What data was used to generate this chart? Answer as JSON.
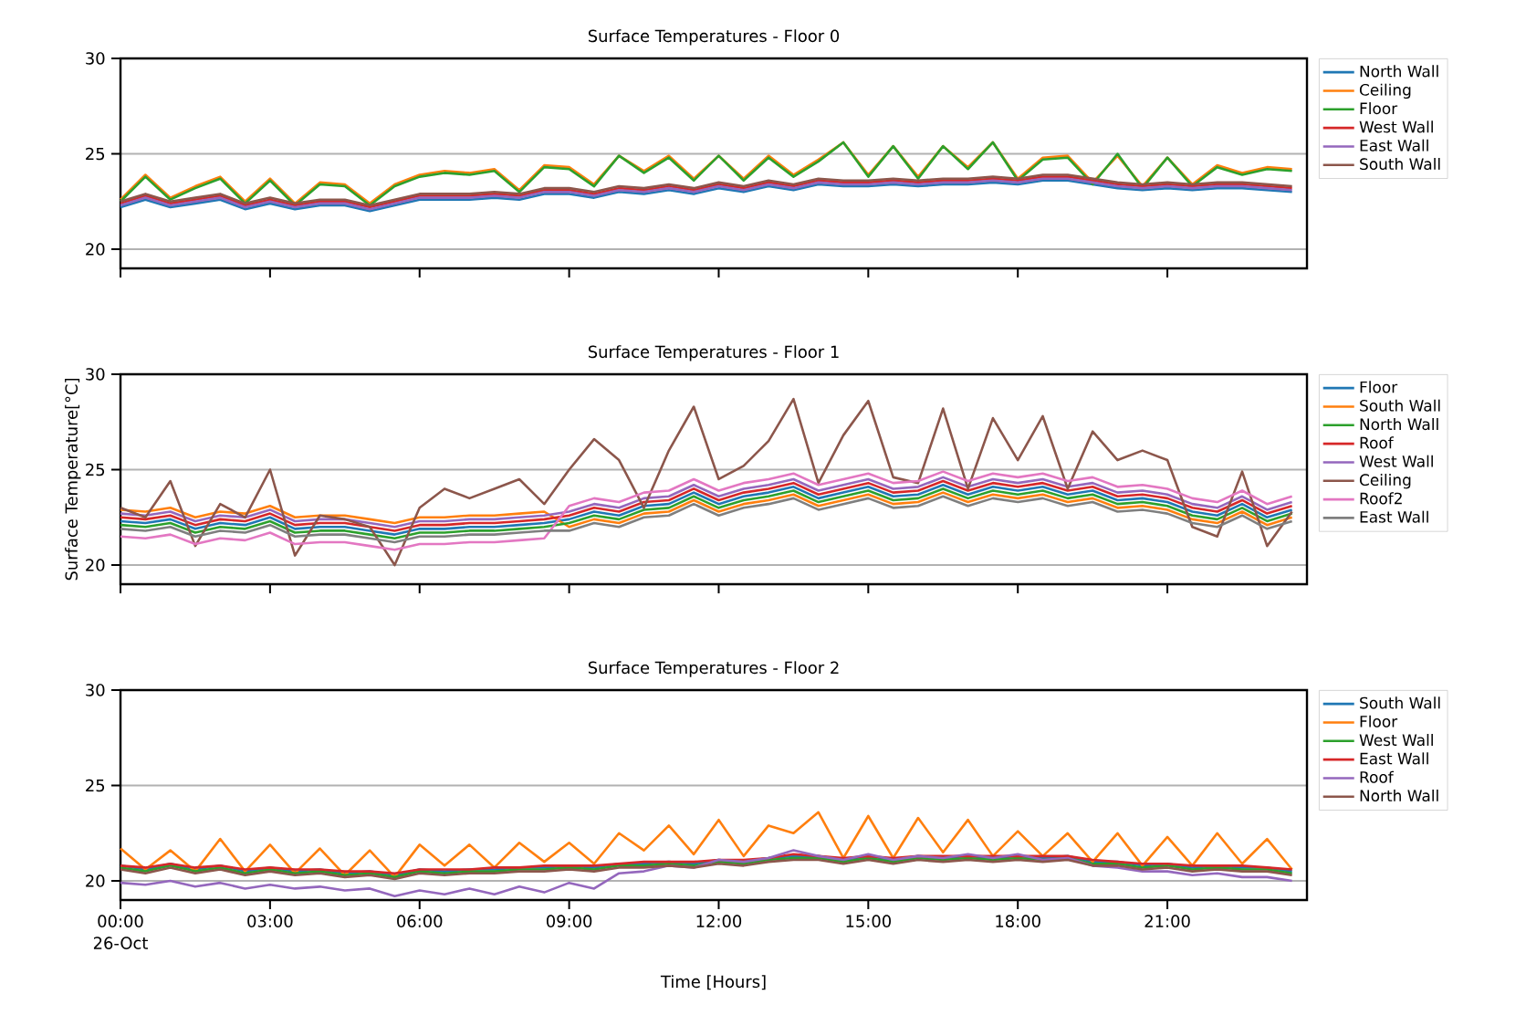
{
  "chart_data": [
    {
      "type": "line",
      "title": "Surface Temperatures - Floor 0",
      "x": [
        0,
        0.5,
        1,
        1.5,
        2,
        2.5,
        3,
        3.5,
        4,
        4.5,
        5,
        5.5,
        6,
        6.5,
        7,
        7.5,
        8,
        8.5,
        9,
        9.5,
        10,
        10.5,
        11,
        11.5,
        12,
        12.5,
        13,
        13.5,
        14,
        14.5,
        15,
        15.5,
        16,
        16.5,
        17,
        17.5,
        18,
        18.5,
        19,
        19.5,
        20,
        20.5,
        21,
        21.5,
        22,
        22.5,
        23,
        23.5
      ],
      "xlim": [
        0,
        23.8
      ],
      "ylim": [
        19,
        30
      ],
      "yticks": [
        20,
        25,
        30
      ],
      "xticks": [
        {
          "value": 0,
          "label": null
        },
        {
          "value": 3,
          "label": null
        },
        {
          "value": 6,
          "label": null
        },
        {
          "value": 9,
          "label": null
        },
        {
          "value": 12,
          "label": null
        },
        {
          "value": 15,
          "label": null
        },
        {
          "value": 18,
          "label": null
        },
        {
          "value": 21,
          "label": null
        }
      ],
      "tick_labels": "y",
      "grid": "y",
      "legend": "right",
      "series": [
        {
          "name": "North Wall",
          "color": "#1f77b4",
          "values": [
            22.2,
            22.6,
            22.2,
            22.4,
            22.6,
            22.1,
            22.4,
            22.1,
            22.3,
            22.3,
            22.0,
            22.3,
            22.6,
            22.6,
            22.6,
            22.7,
            22.6,
            22.9,
            22.9,
            22.7,
            23.0,
            22.9,
            23.1,
            22.9,
            23.2,
            23.0,
            23.3,
            23.1,
            23.4,
            23.3,
            23.3,
            23.4,
            23.3,
            23.4,
            23.4,
            23.5,
            23.4,
            23.6,
            23.6,
            23.4,
            23.2,
            23.1,
            23.2,
            23.1,
            23.2,
            23.2,
            23.1,
            23.0
          ]
        },
        {
          "name": "Ceiling",
          "color": "#ff7f0e",
          "values": [
            22.6,
            23.9,
            22.7,
            23.3,
            23.8,
            22.5,
            23.7,
            22.4,
            23.5,
            23.4,
            22.4,
            23.4,
            23.9,
            24.1,
            24.0,
            24.2,
            23.1,
            24.4,
            24.3,
            23.4,
            24.9,
            24.1,
            24.9,
            23.7,
            24.9,
            23.7,
            24.9,
            23.9,
            24.7,
            25.6,
            23.9,
            25.4,
            23.8,
            25.4,
            24.3,
            25.6,
            23.7,
            24.8,
            24.9,
            23.5,
            24.9,
            23.3,
            24.8,
            23.4,
            24.4,
            24.0,
            24.3,
            24.2
          ]
        },
        {
          "name": "Floor",
          "color": "#2ca02c",
          "values": [
            22.5,
            23.8,
            22.6,
            23.2,
            23.7,
            22.4,
            23.6,
            22.3,
            23.4,
            23.3,
            22.3,
            23.3,
            23.8,
            24.0,
            23.9,
            24.1,
            23.0,
            24.3,
            24.2,
            23.3,
            24.9,
            24.0,
            24.8,
            23.6,
            24.9,
            23.6,
            24.8,
            23.8,
            24.6,
            25.6,
            23.8,
            25.4,
            23.7,
            25.4,
            24.2,
            25.6,
            23.6,
            24.7,
            24.8,
            23.4,
            25.0,
            23.2,
            24.8,
            23.3,
            24.3,
            23.9,
            24.2,
            24.1
          ]
        },
        {
          "name": "West Wall",
          "color": "#d62728",
          "values": [
            22.4,
            22.8,
            22.4,
            22.6,
            22.8,
            22.3,
            22.6,
            22.3,
            22.5,
            22.5,
            22.2,
            22.5,
            22.8,
            22.8,
            22.8,
            22.9,
            22.8,
            23.1,
            23.1,
            22.9,
            23.2,
            23.1,
            23.3,
            23.1,
            23.4,
            23.2,
            23.5,
            23.3,
            23.6,
            23.5,
            23.5,
            23.6,
            23.5,
            23.6,
            23.6,
            23.7,
            23.6,
            23.8,
            23.8,
            23.6,
            23.4,
            23.3,
            23.4,
            23.3,
            23.4,
            23.4,
            23.3,
            23.2
          ]
        },
        {
          "name": "East Wall",
          "color": "#9467bd",
          "values": [
            22.3,
            22.7,
            22.3,
            22.5,
            22.7,
            22.2,
            22.5,
            22.2,
            22.4,
            22.4,
            22.1,
            22.4,
            22.7,
            22.7,
            22.7,
            22.8,
            22.7,
            23.0,
            23.0,
            22.8,
            23.1,
            23.0,
            23.2,
            23.0,
            23.3,
            23.1,
            23.4,
            23.2,
            23.5,
            23.4,
            23.4,
            23.5,
            23.4,
            23.5,
            23.5,
            23.6,
            23.5,
            23.7,
            23.7,
            23.5,
            23.3,
            23.2,
            23.3,
            23.2,
            23.3,
            23.3,
            23.2,
            23.1
          ]
        },
        {
          "name": "South Wall",
          "color": "#8c564b",
          "values": [
            22.5,
            22.9,
            22.5,
            22.7,
            22.9,
            22.4,
            22.7,
            22.4,
            22.6,
            22.6,
            22.3,
            22.6,
            22.9,
            22.9,
            22.9,
            23.0,
            22.9,
            23.2,
            23.2,
            23.0,
            23.3,
            23.2,
            23.4,
            23.2,
            23.5,
            23.3,
            23.6,
            23.4,
            23.7,
            23.6,
            23.6,
            23.7,
            23.6,
            23.7,
            23.7,
            23.8,
            23.7,
            23.9,
            23.9,
            23.7,
            23.5,
            23.4,
            23.5,
            23.4,
            23.5,
            23.5,
            23.4,
            23.3
          ]
        }
      ]
    },
    {
      "type": "line",
      "title": "Surface Temperatures - Floor 1",
      "ylabel": "Surface Temperature[°C]",
      "x": [
        0,
        0.5,
        1,
        1.5,
        2,
        2.5,
        3,
        3.5,
        4,
        4.5,
        5,
        5.5,
        6,
        6.5,
        7,
        7.5,
        8,
        8.5,
        9,
        9.5,
        10,
        10.5,
        11,
        11.5,
        12,
        12.5,
        13,
        13.5,
        14,
        14.5,
        15,
        15.5,
        16,
        16.5,
        17,
        17.5,
        18,
        18.5,
        19,
        19.5,
        20,
        20.5,
        21,
        21.5,
        22,
        22.5,
        23,
        23.5
      ],
      "xlim": [
        0,
        23.8
      ],
      "ylim": [
        19,
        30
      ],
      "yticks": [
        20,
        25,
        30
      ],
      "xticks": [
        {
          "value": 0,
          "label": null
        },
        {
          "value": 3,
          "label": null
        },
        {
          "value": 6,
          "label": null
        },
        {
          "value": 9,
          "label": null
        },
        {
          "value": 12,
          "label": null
        },
        {
          "value": 15,
          "label": null
        },
        {
          "value": 18,
          "label": null
        },
        {
          "value": 21,
          "label": null
        }
      ],
      "tick_labels": "y",
      "grid": "y",
      "legend": "right",
      "series": [
        {
          "name": "Floor",
          "color": "#1f77b4",
          "values": [
            22.3,
            22.2,
            22.4,
            21.9,
            22.2,
            22.1,
            22.5,
            21.9,
            22.0,
            22.0,
            21.8,
            21.6,
            21.9,
            21.9,
            22.0,
            22.0,
            22.1,
            22.2,
            22.4,
            22.8,
            22.6,
            23.1,
            23.2,
            23.8,
            23.2,
            23.6,
            23.8,
            24.1,
            23.5,
            23.8,
            24.1,
            23.6,
            23.7,
            24.2,
            23.7,
            24.1,
            23.9,
            24.1,
            23.7,
            23.9,
            23.4,
            23.5,
            23.3,
            22.8,
            22.6,
            23.2,
            22.5,
            22.9
          ]
        },
        {
          "name": "South Wall",
          "color": "#ff7f0e",
          "values": [
            22.9,
            22.8,
            23.0,
            22.5,
            22.8,
            22.7,
            23.1,
            22.5,
            22.6,
            22.6,
            22.4,
            22.2,
            22.5,
            22.5,
            22.6,
            22.6,
            22.7,
            22.8,
            22.0,
            22.4,
            22.2,
            22.7,
            22.8,
            23.4,
            22.8,
            23.2,
            23.4,
            23.7,
            23.1,
            23.4,
            23.7,
            23.2,
            23.3,
            23.8,
            23.3,
            23.7,
            23.5,
            23.7,
            23.3,
            23.5,
            23.0,
            23.1,
            22.9,
            22.4,
            22.2,
            22.8,
            22.1,
            22.5
          ]
        },
        {
          "name": "North Wall",
          "color": "#2ca02c",
          "values": [
            22.1,
            22.0,
            22.2,
            21.7,
            22.0,
            21.9,
            22.3,
            21.7,
            21.8,
            21.8,
            21.6,
            21.4,
            21.7,
            21.7,
            21.8,
            21.8,
            21.9,
            22.0,
            22.2,
            22.6,
            22.4,
            22.9,
            23.0,
            23.6,
            23.0,
            23.4,
            23.6,
            23.9,
            23.3,
            23.6,
            23.9,
            23.4,
            23.5,
            24.0,
            23.5,
            23.9,
            23.7,
            23.9,
            23.5,
            23.7,
            23.2,
            23.3,
            23.1,
            22.6,
            22.4,
            23.0,
            22.3,
            22.7
          ]
        },
        {
          "name": "Roof",
          "color": "#d62728",
          "values": [
            22.5,
            22.4,
            22.6,
            22.1,
            22.4,
            22.3,
            22.7,
            22.1,
            22.2,
            22.2,
            22.0,
            21.8,
            22.1,
            22.1,
            22.2,
            22.2,
            22.3,
            22.4,
            22.6,
            23.0,
            22.8,
            23.3,
            23.4,
            24.0,
            23.4,
            23.8,
            24.0,
            24.3,
            23.7,
            24.0,
            24.3,
            23.8,
            23.9,
            24.4,
            23.9,
            24.3,
            24.1,
            24.3,
            23.9,
            24.1,
            23.6,
            23.7,
            23.5,
            23.0,
            22.8,
            23.4,
            22.7,
            23.1
          ]
        },
        {
          "name": "West Wall",
          "color": "#9467bd",
          "values": [
            22.7,
            22.6,
            22.8,
            22.3,
            22.6,
            22.5,
            22.9,
            22.3,
            22.4,
            22.4,
            22.2,
            22.0,
            22.3,
            22.3,
            22.4,
            22.4,
            22.5,
            22.6,
            22.8,
            23.2,
            23.0,
            23.5,
            23.6,
            24.2,
            23.6,
            24.0,
            24.2,
            24.5,
            23.9,
            24.2,
            24.5,
            24.0,
            24.1,
            24.6,
            24.1,
            24.5,
            24.3,
            24.5,
            24.1,
            24.3,
            23.8,
            23.9,
            23.7,
            23.2,
            23.0,
            23.6,
            22.9,
            23.3
          ]
        },
        {
          "name": "Ceiling",
          "color": "#8c564b",
          "values": [
            23.0,
            22.5,
            24.4,
            21.0,
            23.2,
            22.5,
            25.0,
            20.5,
            22.6,
            22.4,
            22.0,
            20.0,
            23.0,
            24.0,
            23.5,
            24.0,
            24.5,
            23.2,
            25.0,
            26.6,
            25.5,
            23.0,
            26.0,
            28.3,
            24.5,
            25.2,
            26.5,
            28.7,
            24.3,
            26.8,
            28.6,
            24.6,
            24.3,
            28.2,
            24.0,
            27.7,
            25.5,
            27.8,
            24.0,
            27.0,
            25.5,
            26.0,
            25.5,
            22.0,
            21.5,
            24.9,
            21.0,
            22.8
          ]
        },
        {
          "name": "Roof2",
          "color": "#e377c2",
          "values": [
            21.5,
            21.4,
            21.6,
            21.1,
            21.4,
            21.3,
            21.7,
            21.1,
            21.2,
            21.2,
            21.0,
            20.8,
            21.1,
            21.1,
            21.2,
            21.2,
            21.3,
            21.4,
            23.1,
            23.5,
            23.3,
            23.8,
            23.9,
            24.5,
            23.9,
            24.3,
            24.5,
            24.8,
            24.2,
            24.5,
            24.8,
            24.3,
            24.4,
            24.9,
            24.4,
            24.8,
            24.6,
            24.8,
            24.4,
            24.6,
            24.1,
            24.2,
            24.0,
            23.5,
            23.3,
            23.9,
            23.2,
            23.6
          ]
        },
        {
          "name": "East Wall",
          "color": "#7f7f7f",
          "values": [
            21.9,
            21.8,
            22.0,
            21.5,
            21.8,
            21.7,
            22.1,
            21.5,
            21.6,
            21.6,
            21.4,
            21.2,
            21.5,
            21.5,
            21.6,
            21.6,
            21.7,
            21.8,
            21.8,
            22.2,
            22.0,
            22.5,
            22.6,
            23.2,
            22.6,
            23.0,
            23.2,
            23.5,
            22.9,
            23.2,
            23.5,
            23.0,
            23.1,
            23.6,
            23.1,
            23.5,
            23.3,
            23.5,
            23.1,
            23.3,
            22.8,
            22.9,
            22.7,
            22.2,
            22.0,
            22.6,
            21.9,
            22.3
          ]
        }
      ]
    },
    {
      "type": "line",
      "title": "Surface Temperatures - Floor 2",
      "xlabel": "Time [Hours]",
      "annotations": [
        "26-Oct"
      ],
      "x": [
        0,
        0.5,
        1,
        1.5,
        2,
        2.5,
        3,
        3.5,
        4,
        4.5,
        5,
        5.5,
        6,
        6.5,
        7,
        7.5,
        8,
        8.5,
        9,
        9.5,
        10,
        10.5,
        11,
        11.5,
        12,
        12.5,
        13,
        13.5,
        14,
        14.5,
        15,
        15.5,
        16,
        16.5,
        17,
        17.5,
        18,
        18.5,
        19,
        19.5,
        20,
        20.5,
        21,
        21.5,
        22,
        22.5,
        23,
        23.5
      ],
      "xlim": [
        0,
        23.8
      ],
      "ylim": [
        19,
        30
      ],
      "yticks": [
        20,
        25,
        30
      ],
      "xticks": [
        {
          "value": 0,
          "label": "00:00"
        },
        {
          "value": 3,
          "label": "03:00"
        },
        {
          "value": 6,
          "label": "06:00"
        },
        {
          "value": 9,
          "label": "09:00"
        },
        {
          "value": 12,
          "label": "12:00"
        },
        {
          "value": 15,
          "label": "15:00"
        },
        {
          "value": 18,
          "label": "18:00"
        },
        {
          "value": 21,
          "label": "21:00"
        }
      ],
      "grid": "y",
      "legend": "right",
      "series": [
        {
          "name": "South Wall",
          "color": "#1f77b4",
          "values": [
            20.8,
            20.6,
            20.9,
            20.6,
            20.8,
            20.5,
            20.7,
            20.5,
            20.6,
            20.4,
            20.5,
            20.3,
            20.6,
            20.5,
            20.6,
            20.6,
            20.7,
            20.7,
            20.8,
            20.7,
            20.9,
            20.9,
            21.0,
            20.9,
            21.1,
            21.0,
            21.2,
            21.3,
            21.3,
            21.1,
            21.3,
            21.1,
            21.3,
            21.2,
            21.3,
            21.2,
            21.3,
            21.2,
            21.3,
            21.0,
            21.0,
            20.8,
            20.9,
            20.7,
            20.8,
            20.7,
            20.7,
            20.5
          ]
        },
        {
          "name": "Floor",
          "color": "#ff7f0e",
          "values": [
            21.7,
            20.6,
            21.6,
            20.5,
            22.2,
            20.5,
            21.9,
            20.4,
            21.7,
            20.3,
            21.6,
            20.2,
            21.9,
            20.8,
            21.9,
            20.7,
            22.0,
            21.0,
            22.0,
            20.9,
            22.5,
            21.6,
            22.9,
            21.4,
            23.2,
            21.3,
            22.9,
            22.5,
            23.6,
            21.2,
            23.4,
            21.2,
            23.3,
            21.5,
            23.2,
            21.3,
            22.6,
            21.3,
            22.5,
            21.0,
            22.5,
            20.8,
            22.3,
            20.8,
            22.5,
            20.9,
            22.2,
            20.6
          ]
        },
        {
          "name": "West Wall",
          "color": "#2ca02c",
          "values": [
            20.7,
            20.5,
            20.8,
            20.5,
            20.7,
            20.4,
            20.6,
            20.4,
            20.5,
            20.3,
            20.4,
            20.2,
            20.5,
            20.4,
            20.5,
            20.5,
            20.6,
            20.6,
            20.7,
            20.6,
            20.8,
            20.8,
            20.9,
            20.8,
            21.0,
            20.9,
            21.1,
            21.2,
            21.2,
            21.0,
            21.2,
            21.0,
            21.2,
            21.1,
            21.2,
            21.1,
            21.2,
            21.1,
            21.2,
            20.9,
            20.9,
            20.7,
            20.8,
            20.6,
            20.7,
            20.6,
            20.6,
            20.4
          ]
        },
        {
          "name": "East Wall",
          "color": "#d62728",
          "values": [
            20.8,
            20.7,
            20.9,
            20.7,
            20.8,
            20.6,
            20.7,
            20.6,
            20.6,
            20.5,
            20.5,
            20.4,
            20.6,
            20.6,
            20.6,
            20.7,
            20.7,
            20.8,
            20.8,
            20.8,
            20.9,
            21.0,
            21.0,
            21.0,
            21.1,
            21.1,
            21.2,
            21.4,
            21.3,
            21.2,
            21.3,
            21.2,
            21.3,
            21.3,
            21.3,
            21.3,
            21.3,
            21.3,
            21.3,
            21.1,
            21.0,
            20.9,
            20.9,
            20.8,
            20.8,
            20.8,
            20.7,
            20.6
          ]
        },
        {
          "name": "Roof",
          "color": "#9467bd",
          "values": [
            19.9,
            19.8,
            20.0,
            19.7,
            19.9,
            19.6,
            19.8,
            19.6,
            19.7,
            19.5,
            19.6,
            19.2,
            19.5,
            19.3,
            19.6,
            19.3,
            19.7,
            19.4,
            19.9,
            19.6,
            20.4,
            20.5,
            20.8,
            20.7,
            21.1,
            21.0,
            21.2,
            21.6,
            21.3,
            21.1,
            21.4,
            21.1,
            21.3,
            21.2,
            21.4,
            21.2,
            21.4,
            21.1,
            21.2,
            20.8,
            20.7,
            20.5,
            20.5,
            20.3,
            20.4,
            20.2,
            20.2,
            20.0
          ]
        },
        {
          "name": "North Wall",
          "color": "#8c564b",
          "values": [
            20.6,
            20.4,
            20.7,
            20.4,
            20.6,
            20.3,
            20.5,
            20.3,
            20.4,
            20.2,
            20.3,
            20.1,
            20.4,
            20.3,
            20.4,
            20.4,
            20.5,
            20.5,
            20.6,
            20.5,
            20.7,
            20.7,
            20.8,
            20.7,
            20.9,
            20.8,
            21.0,
            21.1,
            21.1,
            20.9,
            21.1,
            20.9,
            21.1,
            21.0,
            21.1,
            21.0,
            21.1,
            21.0,
            21.1,
            20.8,
            20.8,
            20.6,
            20.7,
            20.5,
            20.6,
            20.5,
            20.5,
            20.3
          ]
        }
      ]
    }
  ]
}
